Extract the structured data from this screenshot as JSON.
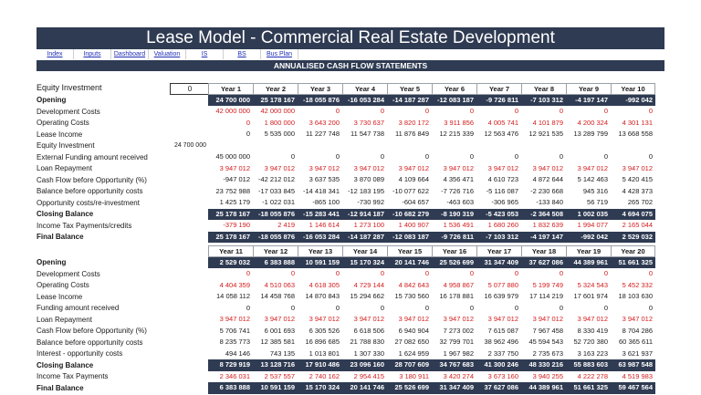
{
  "title": "Lease Model - Commercial Real Estate Development",
  "nav": [
    "Index",
    "Inputs",
    "Dashboard",
    "Valuation",
    "IS",
    "BS",
    "Bus Plan"
  ],
  "subtitle": "ANNUALISED CASH FLOW STATEMENTS",
  "equity_label": "Equity Investment",
  "equity_value": "0",
  "labels1": [
    {
      "t": "Opening",
      "b": true
    },
    {
      "t": "Development Costs"
    },
    {
      "t": "Operating Costs"
    },
    {
      "t": "Lease Income"
    },
    {
      "t": "Equity Investment"
    },
    {
      "t": "External Funding amount received"
    },
    {
      "t": "Loan Repayment"
    },
    {
      "t": "Cash Flow before Opportunity (%)"
    },
    {
      "t": "Balance before opportunity costs"
    },
    {
      "t": "Opportunity costs/re-investment"
    },
    {
      "t": "Closing Balance",
      "b": true
    },
    {
      "t": "Income Tax Payments/credits"
    },
    {
      "t": "Final Balance",
      "b": true
    }
  ],
  "side1": [
    "",
    "",
    "",
    "",
    "24 700 000",
    "",
    "",
    "",
    "",
    "",
    "",
    "",
    ""
  ],
  "years1": [
    "Year 1",
    "Year 2",
    "Year 3",
    "Year 4",
    "Year 5",
    "Year 6",
    "Year 7",
    "Year 8",
    "Year 9",
    "Year 10"
  ],
  "rows1": [
    {
      "s": "dark",
      "v": [
        "24 700 000",
        "25 178 167",
        "-18 055 876",
        "-16 053 284",
        "-14 187 287",
        "-12 083 187",
        "-9 726 811",
        "-7 103 312",
        "-4 197 147",
        "-992 042"
      ]
    },
    {
      "s": "red",
      "v": [
        "42 000 000",
        "42 000 000",
        "0",
        "0",
        "0",
        "0",
        "0",
        "0",
        "0",
        "0"
      ]
    },
    {
      "s": "red",
      "v": [
        "0",
        "1 800 000",
        "3 643 200",
        "3 730 637",
        "3 820 172",
        "3 911 856",
        "4 005 741",
        "4 101 879",
        "4 200 324",
        "4 301 131"
      ]
    },
    {
      "s": "",
      "v": [
        "0",
        "5 535 000",
        "11 227 748",
        "11 547 738",
        "11 876 849",
        "12 215 339",
        "12 563 476",
        "12 921 535",
        "13 289 799",
        "13 668 558"
      ]
    },
    {
      "s": "",
      "v": [
        "",
        "",
        "",
        "",
        "",
        "",
        "",
        "",
        "",
        ""
      ]
    },
    {
      "s": "",
      "v": [
        "45 000 000",
        "0",
        "0",
        "0",
        "0",
        "0",
        "0",
        "0",
        "0",
        "0"
      ]
    },
    {
      "s": "red",
      "v": [
        "3 947 012",
        "3 947 012",
        "3 947 012",
        "3 947 012",
        "3 947 012",
        "3 947 012",
        "3 947 012",
        "3 947 012",
        "3 947 012",
        "3 947 012"
      ]
    },
    {
      "s": "",
      "v": [
        "-947 012",
        "-42 212 012",
        "3 637 535",
        "3 870 089",
        "4 109 664",
        "4 356 471",
        "4 610 723",
        "4 872 644",
        "5 142 463",
        "5 420 415"
      ]
    },
    {
      "s": "",
      "v": [
        "23 752 988",
        "-17 033 845",
        "-14 418 341",
        "-12 183 195",
        "-10 077 622",
        "-7 726 716",
        "-5 116 087",
        "-2 230 668",
        "945 316",
        "4 428 373"
      ]
    },
    {
      "s": "",
      "v": [
        "1 425 179",
        "-1 022 031",
        "-865 100",
        "-730 992",
        "-604 657",
        "-463 603",
        "-306 965",
        "-133 840",
        "56 719",
        "265 702"
      ]
    },
    {
      "s": "dark",
      "v": [
        "25 178 167",
        "-18 055 876",
        "-15 283 441",
        "-12 914 187",
        "-10 682 279",
        "-8 190 319",
        "-5 423 053",
        "-2 364 508",
        "1 002 035",
        "4 694 075"
      ]
    },
    {
      "s": "red",
      "v": [
        "-379 190",
        "2 419",
        "1 146 614",
        "1 273 100",
        "1 400 907",
        "1 536 491",
        "1 680 260",
        "1 832 639",
        "1 994 077",
        "2 165 044"
      ]
    },
    {
      "s": "dark",
      "v": [
        "25 178 167",
        "-18 055 876",
        "-16 053 284",
        "-14 187 287",
        "-12 083 187",
        "-9 726 811",
        "-7 103 312",
        "-4 197 147",
        "-992 042",
        "2 529 032"
      ]
    }
  ],
  "labels2": [
    {
      "t": "Opening",
      "b": true
    },
    {
      "t": "Development Costs"
    },
    {
      "t": "Operating Costs"
    },
    {
      "t": "Lease Income"
    },
    {
      "t": "Funding amount received"
    },
    {
      "t": "Loan Repayment"
    },
    {
      "t": "Cash Flow before Opportunity (%)"
    },
    {
      "t": "Balance before opportunity costs"
    },
    {
      "t": "Interest - opportunity costs"
    },
    {
      "t": "Closing Balance",
      "b": true
    },
    {
      "t": "Income Tax Payments"
    },
    {
      "t": "Final Balance",
      "b": true
    }
  ],
  "years2": [
    "Year 11",
    "Year 12",
    "Year 13",
    "Year 14",
    "Year 15",
    "Year 16",
    "Year 17",
    "Year 18",
    "Year 19",
    "Year 20"
  ],
  "rows2": [
    {
      "s": "dark",
      "v": [
        "2 529 032",
        "6 383 888",
        "10 591 159",
        "15 170 324",
        "20 141 746",
        "25 526 699",
        "31 347 409",
        "37 627 086",
        "44 389 961",
        "51 661 325"
      ]
    },
    {
      "s": "red",
      "v": [
        "0",
        "0",
        "0",
        "0",
        "0",
        "0",
        "0",
        "0",
        "0",
        "0"
      ]
    },
    {
      "s": "red",
      "v": [
        "4 404 359",
        "4 510 063",
        "4 618 305",
        "4 729 144",
        "4 842 643",
        "4 958 867",
        "5 077 880",
        "5 199 749",
        "5 324 543",
        "5 452 332"
      ]
    },
    {
      "s": "",
      "v": [
        "14 058 112",
        "14 458 768",
        "14 870 843",
        "15 294 662",
        "15 730 560",
        "16 178 881",
        "16 639 979",
        "17 114 219",
        "17 601 974",
        "18 103 630"
      ]
    },
    {
      "s": "",
      "v": [
        "0",
        "0",
        "0",
        "0",
        "0",
        "0",
        "0",
        "0",
        "0",
        "0"
      ]
    },
    {
      "s": "red",
      "v": [
        "3 947 012",
        "3 947 012",
        "3 947 012",
        "3 947 012",
        "3 947 012",
        "3 947 012",
        "3 947 012",
        "3 947 012",
        "3 947 012",
        "3 947 012"
      ]
    },
    {
      "s": "",
      "v": [
        "5 706 741",
        "6 001 693",
        "6 305 526",
        "6 618 506",
        "6 940 904",
        "7 273 002",
        "7 615 087",
        "7 967 458",
        "8 330 419",
        "8 704 286"
      ]
    },
    {
      "s": "",
      "v": [
        "8 235 773",
        "12 385 581",
        "16 896 685",
        "21 788 830",
        "27 082 650",
        "32 799 701",
        "38 962 496",
        "45 594 543",
        "52 720 380",
        "60 365 611"
      ]
    },
    {
      "s": "",
      "v": [
        "494 146",
        "743 135",
        "1 013 801",
        "1 307 330",
        "1 624 959",
        "1 967 982",
        "2 337 750",
        "2 735 673",
        "3 163 223",
        "3 621 937"
      ]
    },
    {
      "s": "dark",
      "v": [
        "8 729 919",
        "13 128 716",
        "17 910 486",
        "23 096 160",
        "28 707 609",
        "34 767 683",
        "41 300 246",
        "48 330 216",
        "55 883 603",
        "63 987 548"
      ]
    },
    {
      "s": "red",
      "v": [
        "2 346 031",
        "2 537 557",
        "2 740 162",
        "2 954 415",
        "3 180 911",
        "3 420 274",
        "3 673 160",
        "3 940 255",
        "4 222 278",
        "4 519 983"
      ]
    },
    {
      "s": "dark",
      "v": [
        "6 383 888",
        "10 591 159",
        "15 170 324",
        "20 141 746",
        "25 526 699",
        "31 347 409",
        "37 627 086",
        "44 389 961",
        "51 661 325",
        "59 467 564"
      ]
    }
  ]
}
